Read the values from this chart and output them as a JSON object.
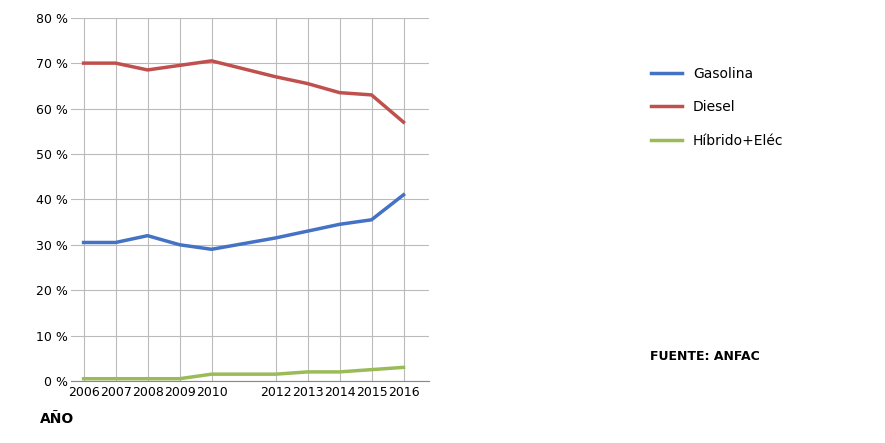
{
  "years": [
    2006,
    2007,
    2008,
    2009,
    2010,
    2012,
    2013,
    2014,
    2015,
    2016
  ],
  "gasolina": [
    30.5,
    30.5,
    32.0,
    30.0,
    29.0,
    31.5,
    33.0,
    34.5,
    35.5,
    41.0
  ],
  "diesel": [
    70.0,
    70.0,
    68.5,
    69.5,
    70.5,
    67.0,
    65.5,
    63.5,
    63.0,
    57.0
  ],
  "hibrido": [
    0.5,
    0.5,
    0.5,
    0.5,
    1.5,
    1.5,
    2.0,
    2.0,
    2.5,
    3.0
  ],
  "gasolina_color": "#4472C4",
  "diesel_color": "#C0504D",
  "hibrido_color": "#9BBB59",
  "legend_labels": [
    "Gasolina",
    "Diesel",
    "Híbrido+Eléc"
  ],
  "xlabel": "AÑO",
  "ylim": [
    0,
    80
  ],
  "yticks": [
    0,
    10,
    20,
    30,
    40,
    50,
    60,
    70,
    80
  ],
  "source_text": "FUENTE: ANFAC",
  "background_color": "#FFFFFF",
  "grid_color": "#BBBBBB",
  "line_width": 2.5,
  "xlim_left": 2005.6,
  "xlim_right": 2016.8
}
